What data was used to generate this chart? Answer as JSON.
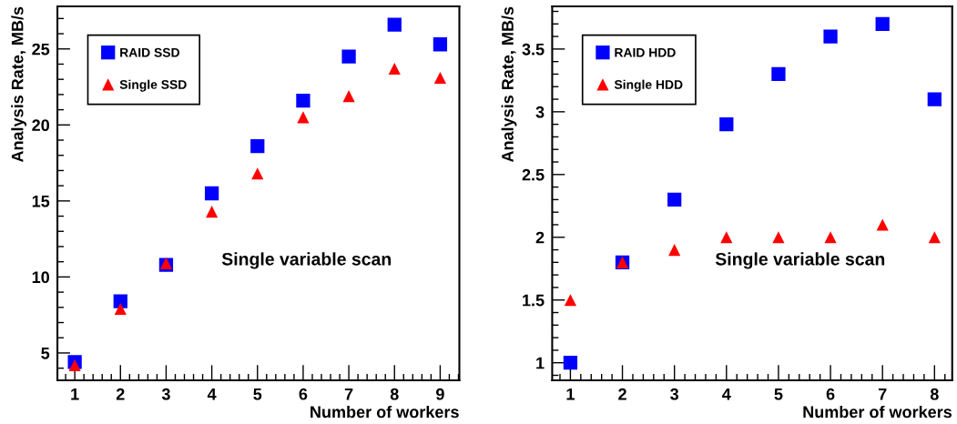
{
  "chart_data": [
    {
      "type": "scatter",
      "xlabel": "Number of workers",
      "ylabel": "Analysis Rate, MB/s",
      "x": [
        1,
        2,
        3,
        4,
        5,
        6,
        7,
        8,
        9
      ],
      "series": [
        {
          "name": "RAID SSD",
          "color": "#0000ff",
          "marker": "square",
          "values": [
            4.4,
            8.4,
            10.8,
            15.5,
            18.6,
            21.6,
            24.5,
            26.6,
            25.3
          ]
        },
        {
          "name": "Single SSD",
          "color": "#ff0000",
          "marker": "triangle",
          "values": [
            4.2,
            7.9,
            10.9,
            14.3,
            16.8,
            20.5,
            21.9,
            23.7,
            23.1
          ]
        }
      ],
      "xlim": [
        0.62,
        9.42
      ],
      "ylim": [
        3.2,
        27.8
      ],
      "xticks": [
        1,
        2,
        3,
        4,
        5,
        6,
        7,
        8,
        9
      ],
      "yticks": [
        5,
        10,
        15,
        20,
        25
      ],
      "legend": "top left",
      "grid": false,
      "annotations": [
        "Single variable scan"
      ]
    },
    {
      "type": "scatter",
      "xlabel": "Number of workers",
      "ylabel": "Analysis Rate, MB/s",
      "x": [
        1,
        2,
        3,
        4,
        5,
        6,
        7,
        8
      ],
      "series": [
        {
          "name": "RAID HDD",
          "color": "#0000ff",
          "marker": "square",
          "values": [
            1.0,
            1.8,
            2.3,
            2.9,
            3.3,
            3.6,
            3.7,
            3.1
          ]
        },
        {
          "name": "Single HDD",
          "color": "#ff0000",
          "marker": "triangle",
          "values": [
            1.5,
            1.8,
            1.9,
            2.0,
            2.0,
            2.0,
            2.1,
            2.0
          ]
        }
      ],
      "xlim": [
        0.65,
        8.34
      ],
      "ylim": [
        0.86,
        3.84
      ],
      "xticks": [
        1,
        2,
        3,
        4,
        5,
        6,
        7,
        8
      ],
      "yticks": [
        1,
        1.5,
        2,
        2.5,
        3,
        3.5
      ],
      "legend": "top left",
      "grid": false,
      "annotations": [
        "Single variable scan"
      ]
    }
  ]
}
